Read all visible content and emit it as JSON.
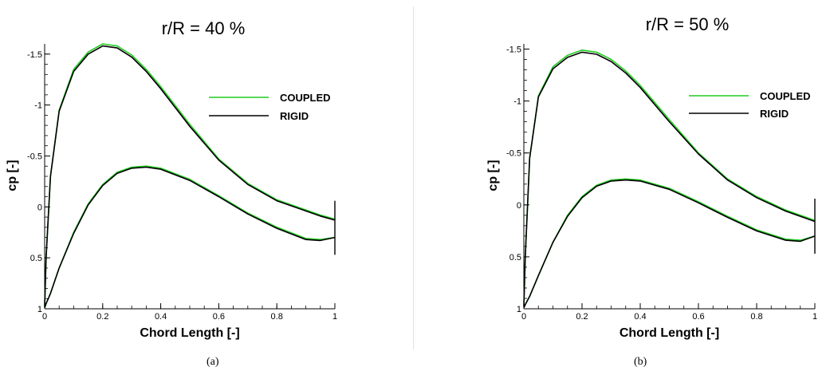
{
  "figure": {
    "captions": [
      "(a)",
      "(b)"
    ]
  },
  "chart_data": [
    {
      "type": "line",
      "title": "r/R = 40 %",
      "xlabel": "Chord Length [-]",
      "ylabel": "cp [-]",
      "xlim": [
        0,
        1
      ],
      "ylim": [
        1,
        -1.6
      ],
      "y_inverted": true,
      "xticks": [
        0,
        0.2,
        0.4,
        0.6,
        0.8,
        1
      ],
      "xtick_labels": [
        "0",
        "0.2",
        "0.4",
        "0.6",
        "0.8",
        "1"
      ],
      "yticks": [
        -1.5,
        -1,
        -0.5,
        0,
        0.5,
        1
      ],
      "ytick_labels": [
        "-1.5",
        "-1",
        "-0.5",
        "0",
        "0.5",
        "1"
      ],
      "grid": false,
      "legend_position": "right",
      "series": [
        {
          "name": "COUPLED",
          "color": "#22cc22",
          "upper": {
            "x": [
              0,
              0.005,
              0.02,
              0.05,
              0.1,
              0.15,
              0.2,
              0.25,
              0.3,
              0.35,
              0.4,
              0.5,
              0.6,
              0.7,
              0.8,
              0.9,
              0.95,
              1
            ],
            "y": [
              0.98,
              0.5,
              -0.3,
              -0.95,
              -1.35,
              -1.52,
              -1.6,
              -1.58,
              -1.49,
              -1.35,
              -1.18,
              -0.81,
              -0.47,
              -0.23,
              -0.07,
              0.03,
              0.08,
              0.12
            ]
          },
          "lower": {
            "x": [
              0,
              0.005,
              0.02,
              0.05,
              0.1,
              0.15,
              0.2,
              0.25,
              0.3,
              0.35,
              0.4,
              0.5,
              0.6,
              0.7,
              0.8,
              0.9,
              0.95,
              1
            ],
            "y": [
              0.99,
              0.95,
              0.85,
              0.6,
              0.25,
              -0.03,
              -0.22,
              -0.34,
              -0.39,
              -0.4,
              -0.38,
              -0.27,
              -0.11,
              0.06,
              0.2,
              0.31,
              0.32,
              0.3
            ]
          }
        },
        {
          "name": "RIGID",
          "color": "#000000",
          "upper": {
            "x": [
              0,
              0.005,
              0.02,
              0.05,
              0.1,
              0.15,
              0.2,
              0.25,
              0.3,
              0.35,
              0.4,
              0.5,
              0.6,
              0.7,
              0.8,
              0.9,
              0.95,
              1
            ],
            "y": [
              0.98,
              0.5,
              -0.3,
              -0.94,
              -1.33,
              -1.5,
              -1.58,
              -1.56,
              -1.47,
              -1.33,
              -1.16,
              -0.79,
              -0.46,
              -0.22,
              -0.06,
              0.04,
              0.09,
              0.13
            ]
          },
          "lower": {
            "x": [
              0,
              0.005,
              0.02,
              0.05,
              0.1,
              0.15,
              0.2,
              0.25,
              0.3,
              0.35,
              0.4,
              0.5,
              0.6,
              0.7,
              0.8,
              0.9,
              0.95,
              1
            ],
            "y": [
              0.99,
              0.95,
              0.85,
              0.6,
              0.26,
              -0.02,
              -0.21,
              -0.33,
              -0.38,
              -0.39,
              -0.37,
              -0.26,
              -0.1,
              0.07,
              0.21,
              0.32,
              0.33,
              0.3
            ]
          }
        }
      ],
      "trailing_edge": {
        "x": 1,
        "y_range": [
          -0.06,
          0.47
        ]
      }
    },
    {
      "type": "line",
      "title": "r/R = 50 %",
      "xlabel": "Chord Length [-]",
      "ylabel": "cp [-]",
      "xlim": [
        0,
        1
      ],
      "ylim": [
        1,
        -1.55
      ],
      "y_inverted": true,
      "xticks": [
        0,
        0.2,
        0.4,
        0.6,
        0.8,
        1
      ],
      "xtick_labels": [
        "0",
        "0.2",
        "0.4",
        "0.6",
        "0.8",
        "1"
      ],
      "yticks": [
        -1.5,
        -1,
        -0.5,
        0,
        0.5,
        1
      ],
      "ytick_labels": [
        "-1.5",
        "-1",
        "-0.5",
        "0",
        "0.5",
        "1"
      ],
      "grid": false,
      "legend_position": "right",
      "series": [
        {
          "name": "COUPLED",
          "color": "#22cc22",
          "upper": {
            "x": [
              0,
              0.005,
              0.02,
              0.05,
              0.1,
              0.15,
              0.2,
              0.25,
              0.3,
              0.35,
              0.4,
              0.5,
              0.6,
              0.7,
              0.8,
              0.9,
              0.95,
              1
            ],
            "y": [
              0.98,
              0.5,
              -0.45,
              -1.05,
              -1.33,
              -1.44,
              -1.49,
              -1.47,
              -1.4,
              -1.29,
              -1.15,
              -0.82,
              -0.5,
              -0.25,
              -0.08,
              0.05,
              0.1,
              0.15
            ]
          },
          "lower": {
            "x": [
              0,
              0.005,
              0.02,
              0.05,
              0.1,
              0.15,
              0.2,
              0.25,
              0.3,
              0.35,
              0.4,
              0.5,
              0.6,
              0.7,
              0.8,
              0.9,
              0.95,
              1
            ],
            "y": [
              0.99,
              0.96,
              0.88,
              0.68,
              0.36,
              0.1,
              -0.08,
              -0.19,
              -0.24,
              -0.25,
              -0.24,
              -0.16,
              -0.03,
              0.11,
              0.24,
              0.33,
              0.34,
              0.3
            ]
          }
        },
        {
          "name": "RIGID",
          "color": "#000000",
          "upper": {
            "x": [
              0,
              0.005,
              0.02,
              0.05,
              0.1,
              0.15,
              0.2,
              0.25,
              0.3,
              0.35,
              0.4,
              0.5,
              0.6,
              0.7,
              0.8,
              0.9,
              0.95,
              1
            ],
            "y": [
              0.98,
              0.5,
              -0.45,
              -1.04,
              -1.31,
              -1.42,
              -1.47,
              -1.45,
              -1.38,
              -1.27,
              -1.13,
              -0.8,
              -0.49,
              -0.24,
              -0.07,
              0.06,
              0.11,
              0.16
            ]
          },
          "lower": {
            "x": [
              0,
              0.005,
              0.02,
              0.05,
              0.1,
              0.15,
              0.2,
              0.25,
              0.3,
              0.35,
              0.4,
              0.5,
              0.6,
              0.7,
              0.8,
              0.9,
              0.95,
              1
            ],
            "y": [
              0.99,
              0.96,
              0.88,
              0.68,
              0.36,
              0.11,
              -0.07,
              -0.18,
              -0.23,
              -0.24,
              -0.23,
              -0.15,
              -0.02,
              0.12,
              0.25,
              0.34,
              0.35,
              0.3
            ]
          }
        }
      ],
      "trailing_edge": {
        "x": 1,
        "y_range": [
          -0.06,
          0.47
        ]
      }
    }
  ]
}
